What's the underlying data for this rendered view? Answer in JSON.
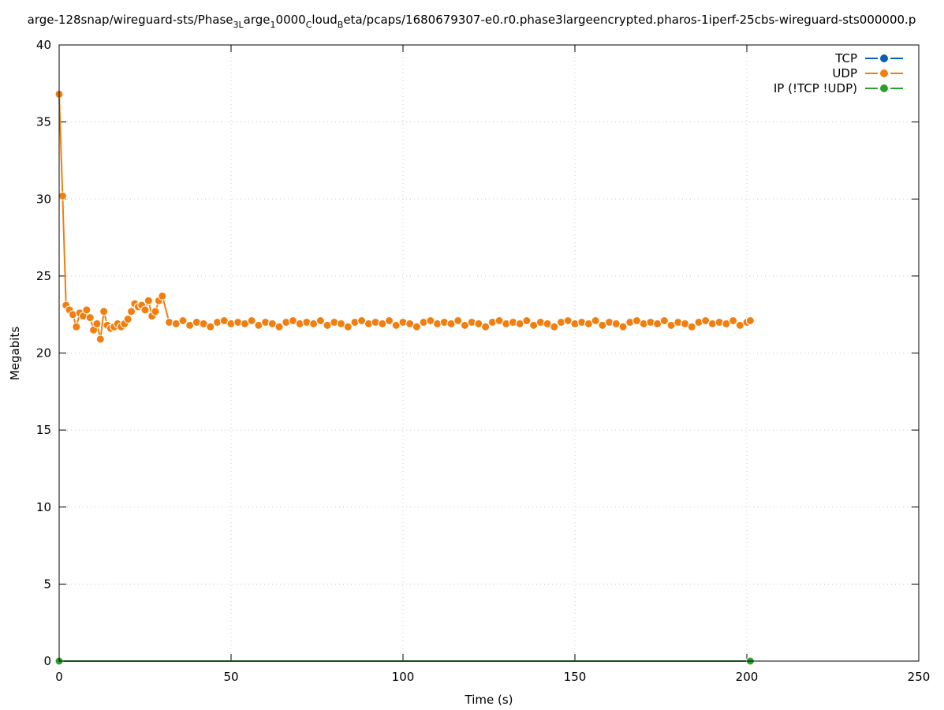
{
  "chart_data": {
    "type": "line",
    "title": [
      {
        "text": "arge-128snap/wireguard-sts/Phase"
      },
      {
        "text": "3L",
        "sub": true
      },
      {
        "text": "arge"
      },
      {
        "text": "1",
        "sub": true
      },
      {
        "text": "0000"
      },
      {
        "text": "C",
        "sub": true
      },
      {
        "text": "loud"
      },
      {
        "text": "B",
        "sub": true
      },
      {
        "text": "eta/pcaps/1680679307-e0.r0.phase3largeencrypted.pharos-1iperf-25cbs-wireguard-sts000000.p"
      }
    ],
    "x_label": "Time (s)",
    "y_label": "Megabits",
    "xlim": [
      0,
      250
    ],
    "xticks": [
      0,
      50,
      100,
      150,
      200,
      250
    ],
    "ylim": [
      0,
      40
    ],
    "yticks": [
      0,
      5,
      10,
      15,
      20,
      25,
      30,
      35,
      40
    ],
    "grid": true,
    "legend": "top-right",
    "series": [
      {
        "name": "TCP",
        "color": "#0a5fb4",
        "x": [],
        "values": []
      },
      {
        "name": "UDP",
        "color": "#f07f10",
        "x": [
          0,
          1,
          2,
          3,
          4,
          5,
          6,
          7,
          8,
          9,
          10,
          11,
          12,
          13,
          14,
          15,
          16,
          17,
          18,
          19,
          20,
          21,
          22,
          23,
          24,
          25,
          26,
          27,
          28,
          29,
          30,
          32,
          34,
          36,
          38,
          40,
          42,
          44,
          46,
          48,
          50,
          52,
          54,
          56,
          58,
          60,
          62,
          64,
          66,
          68,
          70,
          72,
          74,
          76,
          78,
          80,
          82,
          84,
          86,
          88,
          90,
          92,
          94,
          96,
          98,
          100,
          102,
          104,
          106,
          108,
          110,
          112,
          114,
          116,
          118,
          120,
          122,
          124,
          126,
          128,
          130,
          132,
          134,
          136,
          138,
          140,
          142,
          144,
          146,
          148,
          150,
          152,
          154,
          156,
          158,
          160,
          162,
          164,
          166,
          168,
          170,
          172,
          174,
          176,
          178,
          180,
          182,
          184,
          186,
          188,
          190,
          192,
          194,
          196,
          198,
          200,
          201
        ],
        "values": [
          36.8,
          30.2,
          23.1,
          22.8,
          22.5,
          21.7,
          22.6,
          22.4,
          22.8,
          22.3,
          21.5,
          21.9,
          20.9,
          22.7,
          21.8,
          21.6,
          21.7,
          21.9,
          21.7,
          21.9,
          22.2,
          22.7,
          23.2,
          23.0,
          23.1,
          22.8,
          23.4,
          22.4,
          22.7,
          23.4,
          23.7,
          22.0,
          21.9,
          22.1,
          21.8,
          22.0,
          21.9,
          21.7,
          22.0,
          22.1,
          21.9,
          22.0,
          21.9,
          22.1,
          21.8,
          22.0,
          21.9,
          21.7,
          22.0,
          22.1,
          21.9,
          22.0,
          21.9,
          22.1,
          21.8,
          22.0,
          21.9,
          21.7,
          22.0,
          22.1,
          21.9,
          22.0,
          21.9,
          22.1,
          21.8,
          22.0,
          21.9,
          21.7,
          22.0,
          22.1,
          21.9,
          22.0,
          21.9,
          22.1,
          21.8,
          22.0,
          21.9,
          21.7,
          22.0,
          22.1,
          21.9,
          22.0,
          21.9,
          22.1,
          21.8,
          22.0,
          21.9,
          21.7,
          22.0,
          22.1,
          21.9,
          22.0,
          21.9,
          22.1,
          21.8,
          22.0,
          21.9,
          21.7,
          22.0,
          22.1,
          21.9,
          22.0,
          21.9,
          22.1,
          21.8,
          22.0,
          21.9,
          21.7,
          22.0,
          22.1,
          21.9,
          22.0,
          21.9,
          22.1,
          21.8,
          22.0,
          22.1
        ]
      },
      {
        "name": "IP (!TCP  !UDP)",
        "color": "#2ca02c",
        "x": [
          0,
          201
        ],
        "values": [
          0,
          0
        ]
      }
    ]
  }
}
